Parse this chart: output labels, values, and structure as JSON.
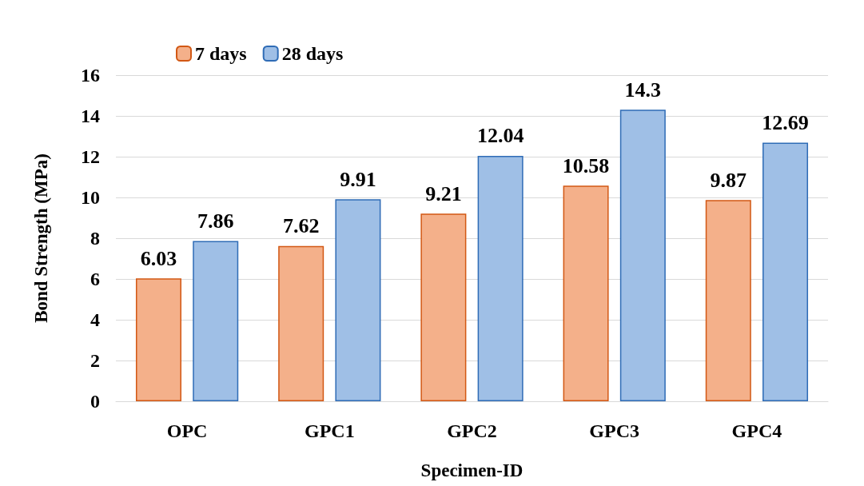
{
  "chart_data": {
    "type": "bar",
    "xlabel": "Specimen-ID",
    "ylabel": "Bond Strength (MPa)",
    "categories": [
      "OPC",
      "GPC1",
      "GPC2",
      "GPC3",
      "GPC4"
    ],
    "series": [
      {
        "name": "7 days",
        "color": "#f4b08a",
        "values": [
          6.03,
          7.62,
          9.21,
          10.58,
          9.87
        ]
      },
      {
        "name": "28 days",
        "color": "#9fbfe6",
        "values": [
          7.86,
          9.91,
          12.04,
          14.3,
          12.69
        ]
      }
    ],
    "ylim": [
      0,
      16
    ],
    "yticks": [
      0,
      2,
      4,
      6,
      8,
      10,
      12,
      14,
      16
    ],
    "grid": "y",
    "legend": "top left",
    "data_labels": true
  }
}
